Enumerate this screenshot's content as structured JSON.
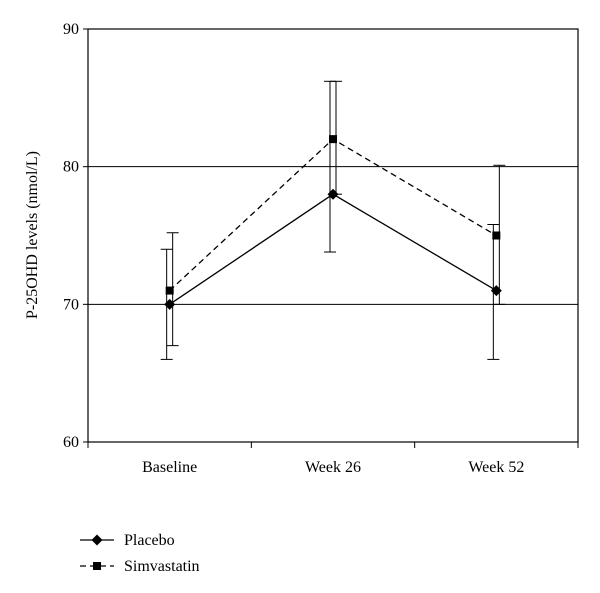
{
  "chart_data": {
    "type": "line",
    "categories": [
      "Baseline",
      "Week 26",
      "Week 52"
    ],
    "ylabel": "P-25OHD levels (nmol/L)",
    "xlabel": "",
    "ylim": [
      60,
      90
    ],
    "yticks": [
      60,
      70,
      80,
      90
    ],
    "grid": {
      "horizontal": true,
      "vertical": false
    },
    "legend": {
      "position": "bottom-left"
    },
    "series": [
      {
        "name": "Placebo",
        "marker": "diamond",
        "line_style": "solid",
        "color": "#000000",
        "values": [
          70,
          78,
          71
        ],
        "error_low": [
          66,
          73.8,
          66
        ],
        "error_high": [
          74,
          86.2,
          75.8
        ]
      },
      {
        "name": "Simvastatin",
        "marker": "square",
        "line_style": "dashed",
        "color": "#000000",
        "values": [
          71,
          82,
          75
        ],
        "error_low": [
          67,
          78,
          70
        ],
        "error_high": [
          75.2,
          86.2,
          80.1
        ]
      }
    ]
  }
}
